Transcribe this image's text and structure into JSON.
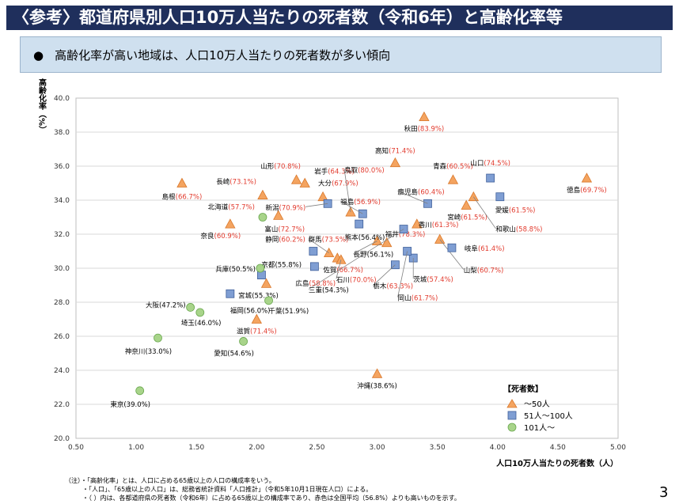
{
  "header": {
    "title": "〈参考〉都道府県別人口10万人当たりの死者数（令和6年）と高齢化率等",
    "bullet": "●",
    "subtitle": "高齢化率が高い地域は、人口10万人当たりの死者数が多い傾向"
  },
  "chart_data": {
    "type": "scatter",
    "xlabel": "人口10万人当たりの死者数（人）",
    "ylabel": "高齢化率（%）",
    "xlim": [
      0.5,
      5.0
    ],
    "ylim": [
      20.0,
      40.0
    ],
    "xticks": [
      "0.50",
      "1.00",
      "1.50",
      "2.00",
      "2.50",
      "3.00",
      "3.50",
      "4.00",
      "4.50",
      "5.00"
    ],
    "yticks": [
      "20.0",
      "22.0",
      "24.0",
      "26.0",
      "28.0",
      "30.0",
      "32.0",
      "34.0",
      "36.0",
      "38.0",
      "40.0"
    ],
    "legend": {
      "title": "【死者数】",
      "position": "bottom-right",
      "items": [
        {
          "name": "～50人",
          "marker": "triangle",
          "color": "#f4a460"
        },
        {
          "name": "51人～100人",
          "marker": "square",
          "color": "#7f9ed3"
        },
        {
          "name": "101人～",
          "marker": "circle",
          "color": "#a8d48a"
        }
      ]
    },
    "series": [
      {
        "marker": "triangle",
        "color": "#f4a460",
        "stroke": "#d9772a",
        "points": [
          {
            "name": "秋田",
            "pct": "(83.9%)",
            "x": 3.39,
            "y": 38.9
          },
          {
            "name": "高知",
            "pct": "(71.4%)",
            "x": 3.15,
            "y": 36.2
          },
          {
            "name": "青森",
            "pct": "(60.5%)",
            "x": 3.63,
            "y": 35.2
          },
          {
            "name": "岩手",
            "pct": "(64.3%)",
            "x": 2.4,
            "y": 35.0
          },
          {
            "name": "山形",
            "pct": "(70.8%)",
            "x": 2.33,
            "y": 35.2
          },
          {
            "name": "島根",
            "pct": "(66.7%)",
            "x": 1.38,
            "y": 35.0
          },
          {
            "name": "長崎",
            "pct": "(73.1%)",
            "x": 2.05,
            "y": 34.3
          },
          {
            "name": "大分",
            "pct": "(67.9%)",
            "x": 2.55,
            "y": 34.2
          },
          {
            "name": "鳥取",
            "pct": "(80.0%)",
            "x": 2.78,
            "y": 33.3
          },
          {
            "name": "徳島",
            "pct": "(69.7%)",
            "x": 4.74,
            "y": 35.3
          },
          {
            "name": "宮崎",
            "pct": "(61.5%)",
            "x": 3.74,
            "y": 33.7
          },
          {
            "name": "和歌山",
            "pct": "(58.8%)",
            "x": 3.8,
            "y": 34.2
          },
          {
            "name": "富山",
            "pct": "(72.7%)",
            "x": 2.18,
            "y": 33.1
          },
          {
            "name": "奈良",
            "pct": "(60.9%)",
            "x": 1.78,
            "y": 32.6
          },
          {
            "name": "香川",
            "pct": "(61.3%)",
            "x": 3.33,
            "y": 32.6
          },
          {
            "name": "長野",
            "pct": "(56.1%)",
            "x": 3.0,
            "y": 31.6
          },
          {
            "name": "福井",
            "pct": "(78.3%)",
            "x": 3.08,
            "y": 31.5
          },
          {
            "name": "群馬",
            "pct": "(73.5%)",
            "x": 2.6,
            "y": 30.9
          },
          {
            "name": "佐賀",
            "pct": "(66.7%)",
            "x": 2.67,
            "y": 30.6
          },
          {
            "name": "石川",
            "pct": "(70.0%)",
            "x": 2.7,
            "y": 30.5
          },
          {
            "name": "山梨",
            "pct": "(60.7%)",
            "x": 3.52,
            "y": 31.7
          },
          {
            "name": "宮城",
            "pct": "(55.3%)",
            "x": 2.08,
            "y": 29.1
          },
          {
            "name": "滋賀",
            "pct": "(71.4%)",
            "x": 2.0,
            "y": 27.0
          },
          {
            "name": "沖縄",
            "pct": "(38.6%)",
            "x": 3.0,
            "y": 23.8
          }
        ]
      },
      {
        "marker": "square",
        "color": "#7f9ed3",
        "stroke": "#3f5f9a",
        "points": [
          {
            "name": "山口",
            "pct": "(74.5%)",
            "x": 3.94,
            "y": 35.3
          },
          {
            "name": "愛媛",
            "pct": "(61.5%)",
            "x": 4.02,
            "y": 34.2
          },
          {
            "name": "鹿児島",
            "pct": "(60.4%)",
            "x": 3.42,
            "y": 33.8
          },
          {
            "name": "新潟",
            "pct": "(70.9%)",
            "x": 2.59,
            "y": 33.8
          },
          {
            "name": "福島",
            "pct": "(56.9%)",
            "x": 2.88,
            "y": 33.2
          },
          {
            "name": "熊本",
            "pct": "(56.4%)",
            "x": 2.85,
            "y": 32.6
          },
          {
            "name": "岐阜",
            "pct": "(61.4%)",
            "x": 3.62,
            "y": 31.2
          },
          {
            "name": "茨城",
            "pct": "(57.4%)",
            "x": 3.3,
            "y": 30.6
          },
          {
            "name": "岡山",
            "pct": "(61.7%)",
            "x": 3.25,
            "y": 31.0
          },
          {
            "name": "栃木",
            "pct": "(63.3%)",
            "x": 3.15,
            "y": 30.2
          },
          {
            "name": "静岡",
            "pct": "(60.2%)",
            "x": 2.47,
            "y": 31.0
          },
          {
            "name": "京都",
            "pct": "(55.8%)",
            "x": 2.04,
            "y": 29.6
          },
          {
            "name": "広島",
            "pct": "(58.8%)",
            "x": 2.48,
            "y": 30.1
          },
          {
            "name": "三重",
            "pct": "(54.3%)",
            "x": 3.22,
            "y": 32.3
          },
          {
            "name": "福岡",
            "pct": "(56.0%)",
            "x": 1.78,
            "y": 28.5
          }
        ]
      },
      {
        "marker": "circle",
        "color": "#a8d48a",
        "stroke": "#6aa84f",
        "points": [
          {
            "name": "北海道",
            "pct": "(57.7%)",
            "x": 2.05,
            "y": 33.0
          },
          {
            "name": "兵庫",
            "pct": "(50.5%)",
            "x": 2.03,
            "y": 30.0
          },
          {
            "name": "千葉",
            "pct": "(51.9%)",
            "x": 2.1,
            "y": 28.1
          },
          {
            "name": "大阪",
            "pct": "(47.2%)",
            "x": 1.45,
            "y": 27.7
          },
          {
            "name": "埼玉",
            "pct": "(46.0%)",
            "x": 1.53,
            "y": 27.4
          },
          {
            "name": "神奈川",
            "pct": "(33.0%)",
            "x": 1.18,
            "y": 25.9
          },
          {
            "name": "愛知",
            "pct": "(54.6%)",
            "x": 1.89,
            "y": 25.7
          },
          {
            "name": "東京",
            "pct": "(39.0%)",
            "x": 1.03,
            "y": 22.8
          }
        ]
      }
    ]
  },
  "notes": [
    "（注）・「高齢化率」とは、人口に占める65歳以上の人口の構成率をいう。",
    "・「人口」、「65歳以上の人口」は、総務省統計資料「人口推計」（令和5年10月1日現在人口）による。",
    "・（ ）内は、各都道府県の死者数（令和6年）に占める65歳以上の構成率であり、赤色は全国平均（56.8%）よりも高いものを示す。"
  ],
  "page_number": "3",
  "colors": {
    "header_bg": "#1f2f5c",
    "subtitle_bg": "#cfe0ef",
    "above_avg": "#e23b2e"
  }
}
